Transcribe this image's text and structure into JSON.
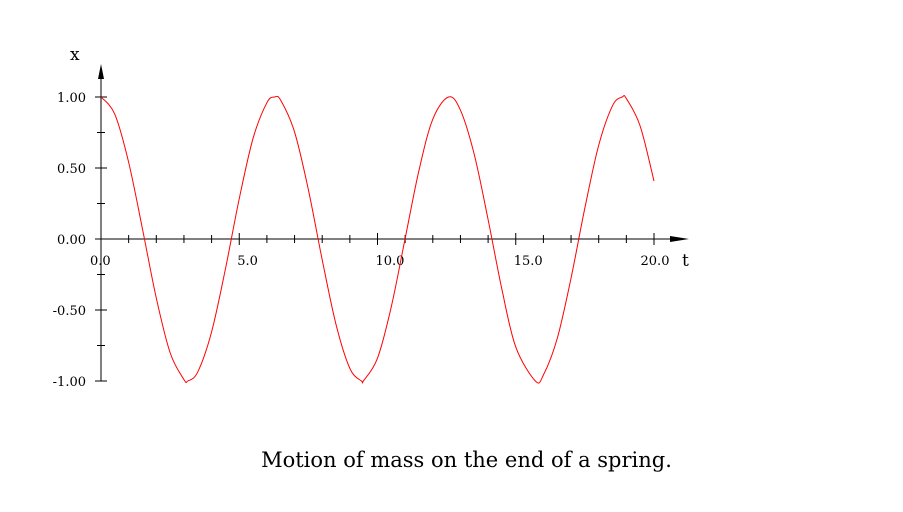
{
  "caption": "Motion of mass on the end of a spring.",
  "chart_data": {
    "type": "line",
    "xlabel": "t",
    "ylabel": "x",
    "xlim": [
      0,
      20
    ],
    "ylim": [
      -1,
      1
    ],
    "x_ticks": [
      "0.0",
      "5.0",
      "10.0",
      "15.0",
      "20.0"
    ],
    "y_ticks": [
      "1.00",
      "0.50",
      "0.00",
      "-0.50",
      "-1.00"
    ],
    "grid": false,
    "line_color": "#ff0000",
    "series": [
      {
        "x": [
          0,
          0.5,
          1,
          1.5,
          2,
          2.5,
          3,
          3.14,
          3.5,
          4,
          4.5,
          5,
          5.5,
          6,
          6.28,
          6.5,
          7,
          7.5,
          8,
          8.5,
          9,
          9.42,
          9.5,
          10,
          10.5,
          11,
          11.5,
          12,
          12.57,
          13,
          13.5,
          14,
          14.5,
          15,
          15.71,
          16,
          16.5,
          17,
          17.5,
          18,
          18.5,
          18.85,
          19,
          19.5,
          20
        ],
        "values": [
          1.0,
          0.878,
          0.54,
          0.071,
          -0.416,
          -0.801,
          -0.99,
          -1.0,
          -0.936,
          -0.654,
          -0.211,
          0.284,
          0.709,
          0.96,
          1.0,
          0.977,
          0.754,
          0.347,
          -0.146,
          -0.602,
          -0.911,
          -1.0,
          -0.997,
          -0.839,
          -0.476,
          0.004,
          0.483,
          0.844,
          1.0,
          0.907,
          0.595,
          0.137,
          -0.355,
          -0.76,
          -1.0,
          -0.958,
          -0.701,
          -0.275,
          0.219,
          0.66,
          0.939,
          1.0,
          0.989,
          0.795,
          0.408
        ]
      }
    ]
  }
}
